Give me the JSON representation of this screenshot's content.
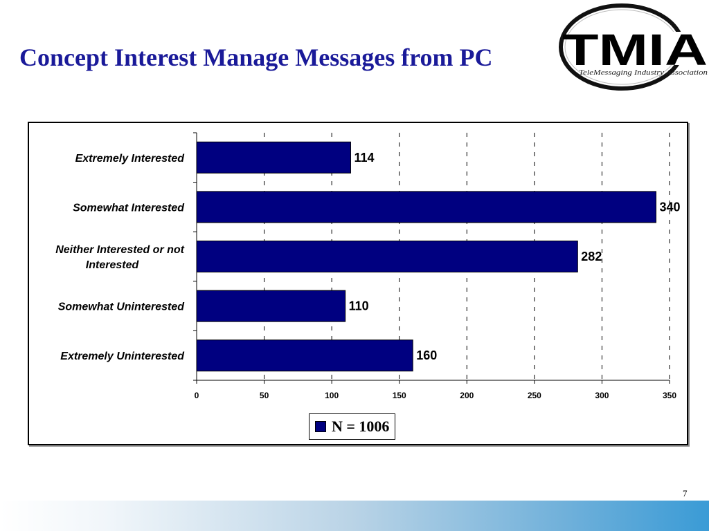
{
  "page": {
    "title": "Concept Interest Manage Messages from PC",
    "page_number": "7"
  },
  "logo": {
    "text": "TMIA",
    "tagline": "TeleMessaging Industry Association"
  },
  "colors": {
    "title": "#1a1a99",
    "bar": "#000080",
    "footer_band_end": "#3a9bd6"
  },
  "chart_data": {
    "type": "bar",
    "orientation": "horizontal",
    "categories": [
      [
        "Extremely Interested"
      ],
      [
        "Somewhat Interested"
      ],
      [
        "Neither Interested or not",
        "Interested"
      ],
      [
        "Somewhat Uninterested"
      ],
      [
        "Extremely Uninterested"
      ]
    ],
    "series": [
      {
        "name": "N = 1006",
        "values": [
          114,
          340,
          282,
          110,
          160
        ]
      }
    ],
    "xlim": [
      0,
      350
    ],
    "ticks": [
      0,
      50,
      100,
      150,
      200,
      250,
      300,
      350
    ],
    "grid": "vertical-dashed",
    "legend_position": "bottom-center"
  }
}
